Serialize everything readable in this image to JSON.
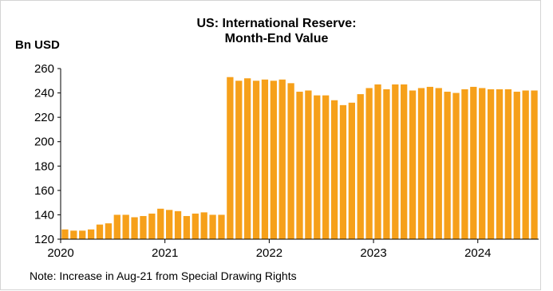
{
  "chart_data": {
    "type": "bar",
    "title": "US: International Reserve:",
    "subtitle": "Month-End Value",
    "ylabel": "Bn USD",
    "xlabel": "",
    "ylim": [
      120,
      260
    ],
    "yticks": [
      120,
      140,
      160,
      180,
      200,
      220,
      240,
      260
    ],
    "xticks": [
      "2020",
      "2021",
      "2022",
      "2023",
      "2024"
    ],
    "grid": false,
    "legend": "none",
    "bar_color": "#F6A01A",
    "note": "Note: Increase in Aug-21 from Special Drawing Rights",
    "categories": [
      "2020-01",
      "2020-02",
      "2020-03",
      "2020-04",
      "2020-05",
      "2020-06",
      "2020-07",
      "2020-08",
      "2020-09",
      "2020-10",
      "2020-11",
      "2020-12",
      "2021-01",
      "2021-02",
      "2021-03",
      "2021-04",
      "2021-05",
      "2021-06",
      "2021-07",
      "2021-08",
      "2021-09",
      "2021-10",
      "2021-11",
      "2021-12",
      "2022-01",
      "2022-02",
      "2022-03",
      "2022-04",
      "2022-05",
      "2022-06",
      "2022-07",
      "2022-08",
      "2022-09",
      "2022-10",
      "2022-11",
      "2022-12",
      "2023-01",
      "2023-02",
      "2023-03",
      "2023-04",
      "2023-05",
      "2023-06",
      "2023-07",
      "2023-08",
      "2023-09",
      "2023-10",
      "2023-11",
      "2023-12",
      "2024-01",
      "2024-02",
      "2024-03",
      "2024-04",
      "2024-05",
      "2024-06",
      "2024-07"
    ],
    "values": [
      128,
      127,
      127,
      128,
      132,
      133,
      140,
      140,
      138,
      139,
      141,
      145,
      144,
      143,
      139,
      141,
      142,
      140,
      140,
      253,
      250,
      252,
      250,
      251,
      250,
      251,
      248,
      241,
      242,
      238,
      238,
      234,
      230,
      232,
      239,
      244,
      247,
      243,
      247,
      247,
      242,
      244,
      245,
      244,
      241,
      240,
      243,
      245,
      244,
      243,
      243,
      243,
      241,
      242,
      242
    ]
  }
}
